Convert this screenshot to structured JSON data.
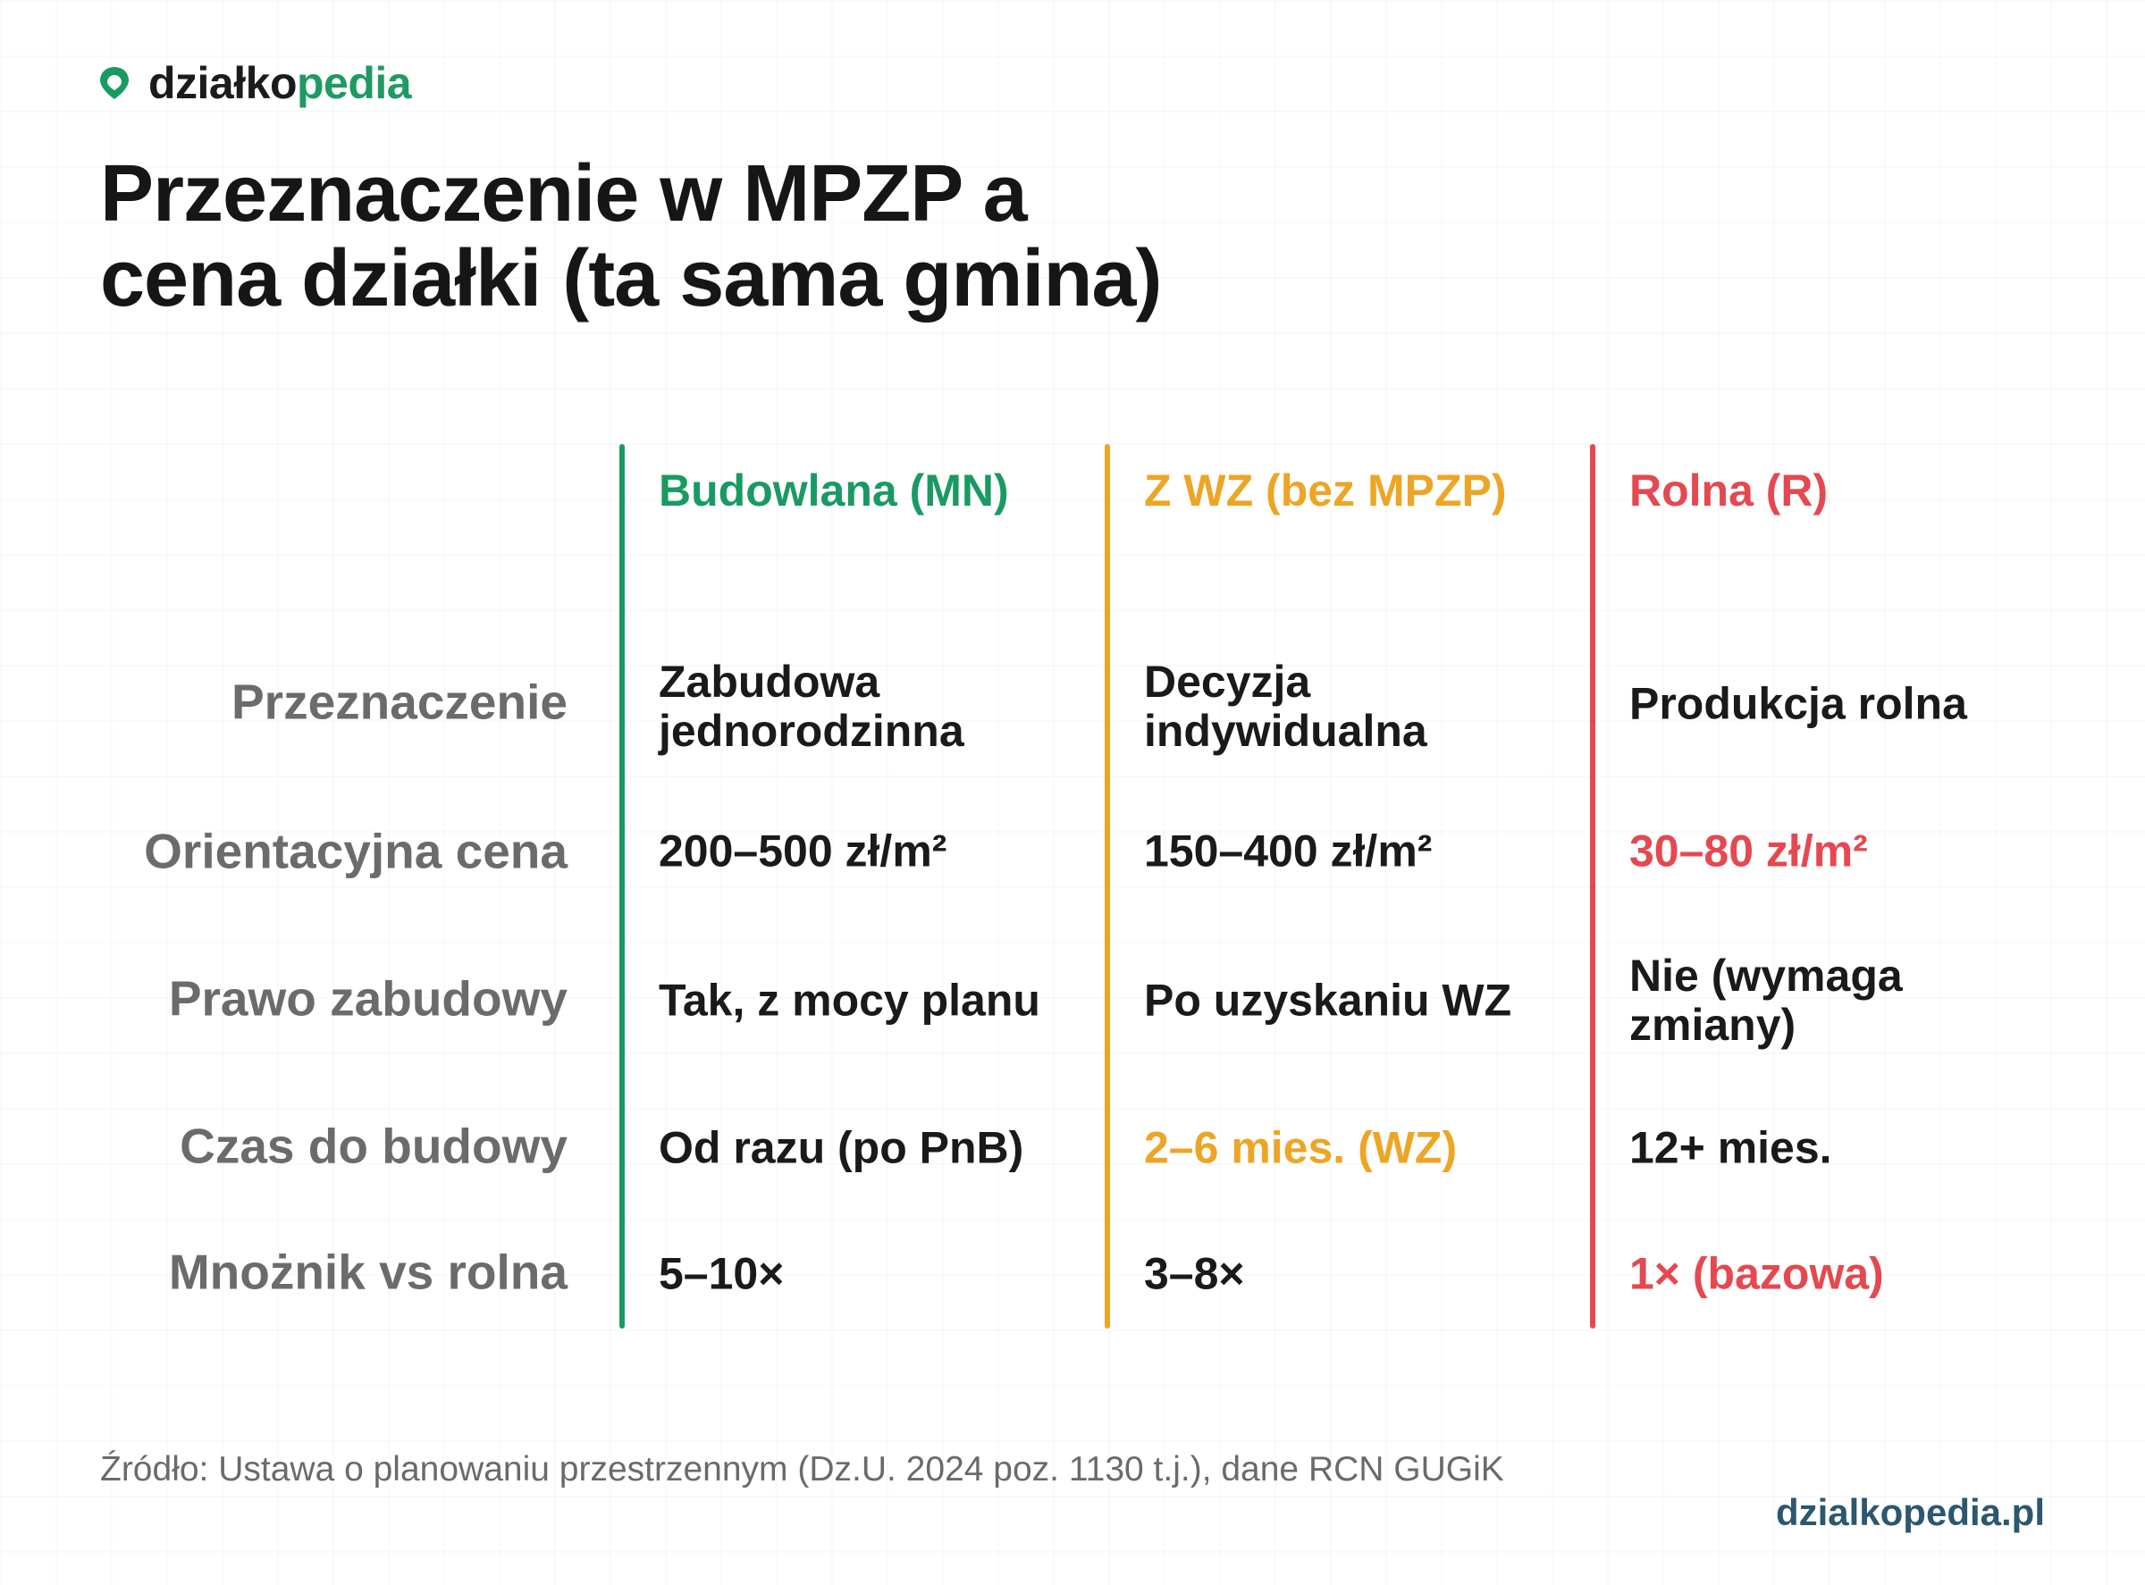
{
  "brand": {
    "name_dark": "działko",
    "name_green": "pedia",
    "icon": "map-pin-icon",
    "colors": {
      "green": "#1a9a63",
      "dark": "#1b1b1b"
    }
  },
  "title": {
    "line1": "Przeznaczenie w MPZP a",
    "line2": "cena działki (ta sama gmina)"
  },
  "table": {
    "columns": [
      {
        "label": "Budowlana (MN)",
        "color": "#1a9a63"
      },
      {
        "label": "Z WZ (bez MPZP)",
        "color": "#eda525"
      },
      {
        "label": "Rolna (R)",
        "color": "#e54850"
      }
    ],
    "rows": [
      {
        "label": "Przeznaczenie",
        "cells": [
          {
            "text": "Zabudowa jednorodzinna"
          },
          {
            "text": "Decyzja indywidualna"
          },
          {
            "text": "Produkcja rolna"
          }
        ]
      },
      {
        "label": "Orientacyjna cena",
        "cells": [
          {
            "text": "200–500 zł/m²"
          },
          {
            "text": "150–400 zł/m²"
          },
          {
            "text": "30–80 zł/m²",
            "color": "#e54850"
          }
        ]
      },
      {
        "label": "Prawo zabudowy",
        "cells": [
          {
            "text": "Tak, z mocy planu"
          },
          {
            "text": "Po uzyskaniu WZ"
          },
          {
            "text": "Nie (wymaga zmiany)"
          }
        ]
      },
      {
        "label": "Czas do budowy",
        "cells": [
          {
            "text": "Od razu (po PnB)"
          },
          {
            "text": "2–6 mies. (WZ)",
            "color": "#eda525"
          },
          {
            "text": "12+ mies."
          }
        ]
      },
      {
        "label": "Mnożnik vs rolna",
        "cells": [
          {
            "text": "5–10×"
          },
          {
            "text": "3–8×"
          },
          {
            "text": "1× (bazowa)",
            "color": "#e54850"
          }
        ]
      }
    ]
  },
  "footer": {
    "source": "Źródło: Ustawa o planowaniu przestrzennym (Dz.U. 2024 poz. 1130 t.j.), dane RCN GUGiK",
    "site": "dzialkopedia.pl"
  }
}
